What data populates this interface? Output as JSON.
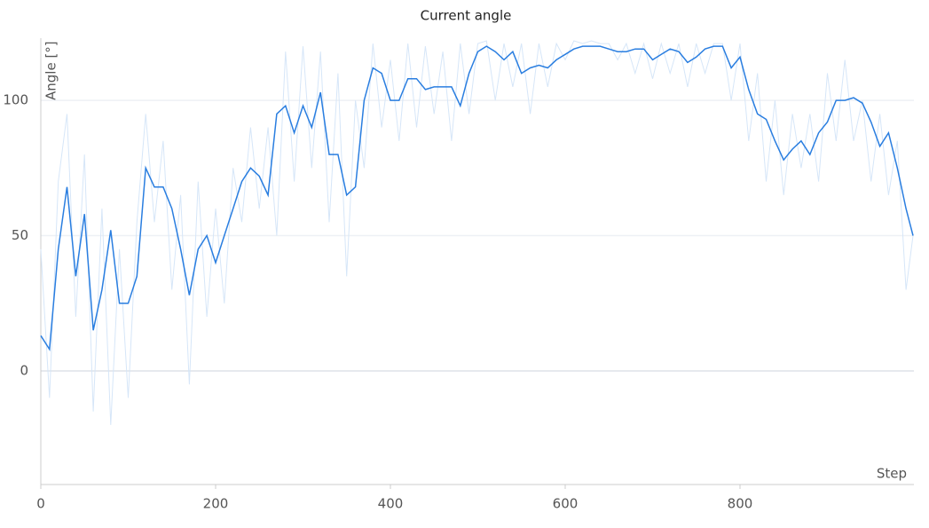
{
  "chart_data": {
    "type": "line",
    "title": "Current angle",
    "x_label": "Step",
    "y_label": "Angle [°]",
    "x": [
      0,
      10,
      20,
      30,
      40,
      50,
      60,
      70,
      80,
      90,
      100,
      110,
      120,
      130,
      140,
      150,
      160,
      170,
      180,
      190,
      200,
      210,
      220,
      230,
      240,
      250,
      260,
      270,
      280,
      290,
      300,
      310,
      320,
      330,
      340,
      350,
      360,
      370,
      380,
      390,
      400,
      410,
      420,
      430,
      440,
      450,
      460,
      470,
      480,
      490,
      500,
      510,
      520,
      530,
      540,
      550,
      560,
      570,
      580,
      590,
      600,
      610,
      620,
      630,
      640,
      650,
      660,
      670,
      680,
      690,
      700,
      710,
      720,
      730,
      740,
      750,
      760,
      770,
      780,
      790,
      800,
      810,
      820,
      830,
      840,
      850,
      860,
      870,
      880,
      890,
      900,
      910,
      920,
      930,
      940,
      950,
      960,
      970,
      980,
      990,
      998
    ],
    "series": [
      {
        "color": "#d6e6f8",
        "values": [
          45,
          -10,
          70,
          95,
          20,
          80,
          -15,
          60,
          -20,
          45,
          -10,
          55,
          95,
          55,
          85,
          30,
          65,
          -5,
          70,
          20,
          60,
          25,
          75,
          55,
          90,
          60,
          90,
          50,
          118,
          70,
          120,
          75,
          118,
          55,
          110,
          35,
          100,
          75,
          121,
          90,
          115,
          85,
          121,
          90,
          120,
          95,
          118,
          85,
          121,
          95,
          121,
          122,
          100,
          121,
          105,
          121,
          95,
          121,
          105,
          121,
          115,
          122,
          121,
          122,
          121,
          121,
          115,
          121,
          110,
          121,
          108,
          121,
          110,
          121,
          105,
          121,
          110,
          121,
          121,
          100,
          121,
          85,
          110,
          70,
          100,
          65,
          95,
          75,
          95,
          70,
          110,
          85,
          115,
          85,
          100,
          70,
          95,
          65,
          85,
          30,
          50
        ]
      },
      {
        "color": "#2a7ee0",
        "values": [
          13,
          8,
          45,
          68,
          35,
          58,
          15,
          30,
          52,
          25,
          25,
          35,
          75,
          68,
          68,
          60,
          45,
          28,
          45,
          50,
          40,
          50,
          60,
          70,
          75,
          72,
          65,
          95,
          98,
          88,
          98,
          90,
          103,
          80,
          80,
          65,
          68,
          100,
          112,
          110,
          100,
          100,
          108,
          108,
          104,
          105,
          105,
          105,
          98,
          110,
          118,
          120,
          118,
          115,
          118,
          110,
          112,
          113,
          112,
          115,
          117,
          119,
          120,
          120,
          120,
          119,
          118,
          118,
          119,
          119,
          115,
          117,
          119,
          118,
          114,
          116,
          119,
          120,
          120,
          112,
          116,
          104,
          95,
          93,
          85,
          78,
          82,
          85,
          80,
          88,
          92,
          100,
          100,
          101,
          99,
          92,
          83,
          88,
          75,
          60,
          50
        ]
      }
    ],
    "xlim": [
      0,
      999
    ],
    "ylim": [
      -42,
      123
    ],
    "xticks": [
      0,
      200,
      400,
      600,
      800
    ],
    "yticks": [
      0,
      50,
      100
    ],
    "grid": true
  }
}
